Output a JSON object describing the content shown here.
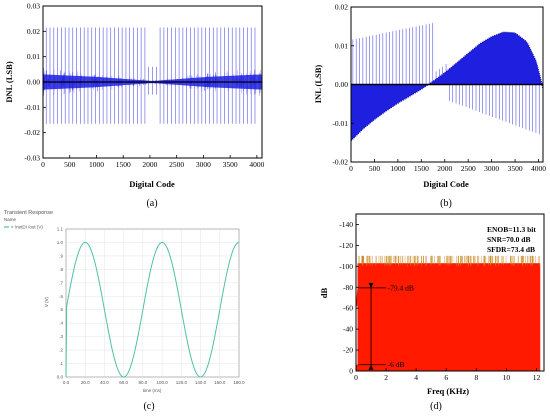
{
  "chart_data": [
    {
      "id": "a",
      "type": "line",
      "caption": "(a)",
      "xlabel": "Digital Code",
      "ylabel": "DNL (LSB)",
      "xlim": [
        0,
        4096
      ],
      "ylim": [
        -0.03,
        0.03
      ],
      "xticks": [
        "0",
        "500",
        "1000",
        "1500",
        "2000",
        "2500",
        "3000",
        "3500",
        "4000"
      ],
      "yticks": [
        "0.03",
        "0.02",
        "0.01",
        "0.00",
        "-0.01",
        "-0.02",
        "-0.03"
      ],
      "color": "#1f1fe0",
      "band_profile": {
        "codes": [
          0,
          512,
          1024,
          1536,
          2048,
          2560,
          3072,
          3584,
          4095
        ],
        "halfwidth": [
          0.003,
          0.0025,
          0.002,
          0.0012,
          0.0004,
          0.0012,
          0.002,
          0.0025,
          0.003
        ]
      },
      "spike_top": 0.0215,
      "spike_bottom": -0.0165
    },
    {
      "id": "b",
      "type": "area",
      "caption": "(b)",
      "xlabel": "Digital Code",
      "ylabel": "INL (LSB)",
      "xlim": [
        0,
        4096
      ],
      "ylim": [
        -0.02,
        0.02
      ],
      "xticks": [
        "0",
        "500",
        "1000",
        "1500",
        "2000",
        "2500",
        "3000",
        "3500",
        "4000"
      ],
      "yticks": [
        "0.02",
        "0.01",
        "0.00",
        "-0.01",
        "-0.02"
      ],
      "color": "#1f1fe0",
      "curve": {
        "x": [
          0,
          250,
          500,
          750,
          1000,
          1250,
          1500,
          1750,
          2000,
          2250,
          2500,
          2750,
          3000,
          3250,
          3500,
          3750,
          3950,
          4095
        ],
        "y": [
          -0.0145,
          -0.0115,
          -0.009,
          -0.0068,
          -0.0048,
          -0.003,
          -0.0012,
          0.0008,
          0.003,
          0.0055,
          0.008,
          0.0105,
          0.0123,
          0.0135,
          0.0133,
          0.011,
          0.006,
          -0.001
        ]
      }
    },
    {
      "id": "c",
      "type": "line",
      "caption": "(c)",
      "title": "Transient Response",
      "subtitle": "Name",
      "legend": "> /netDI /out (V)",
      "xlabel": "time (ms)",
      "ylabel": "V (V)",
      "xlim": [
        0,
        180
      ],
      "ylim": [
        0,
        1.1
      ],
      "xticks": [
        "0.0",
        "20.0",
        "40.0",
        "60.0",
        "80.0",
        "100.0",
        "120.0",
        "140.0",
        "160.0",
        "180.0"
      ],
      "yticks": [
        "1.1",
        "1.0",
        ".9",
        ".8",
        ".7",
        ".6",
        ".5",
        ".4",
        ".3",
        ".2",
        ".1",
        "0.0"
      ],
      "color": "#4fc0a8",
      "sine": {
        "offset": 0.5,
        "amplitude": 0.5,
        "period_ms": 80,
        "phase_ms": 0
      }
    },
    {
      "id": "d",
      "type": "area",
      "caption": "(d)",
      "xlabel": "Freq (KHz)",
      "ylabel": "dB",
      "xlim": [
        0,
        12.5
      ],
      "ylim": [
        -150,
        0
      ],
      "xticks": [
        "0",
        "2",
        "4",
        "6",
        "8",
        "10",
        "12"
      ],
      "yticks": [
        "0",
        "-20",
        "-40",
        "-60",
        "-80",
        "-100",
        "-120",
        "-140"
      ],
      "color": "#ff1a00",
      "noise_floor_db": [
        -103,
        -110
      ],
      "fundamental": {
        "freq": 0.05,
        "db": -6
      },
      "annotations": [
        "-6 dB",
        "-79.4 dB"
      ],
      "metrics": [
        "ENOB=11.3 bit",
        "SNR=70.0 dB",
        "SFDR=73.4 dB"
      ]
    }
  ]
}
